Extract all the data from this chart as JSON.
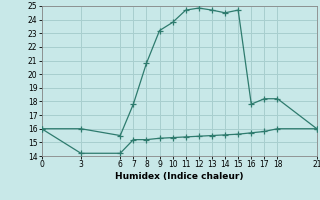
{
  "upper_x": [
    0,
    3,
    6,
    7,
    8,
    9,
    10,
    11,
    12,
    13,
    14,
    15,
    16,
    17,
    18,
    21
  ],
  "upper_y": [
    16,
    16,
    15.5,
    17.8,
    20.8,
    23.2,
    23.8,
    24.7,
    24.85,
    24.7,
    24.5,
    24.7,
    17.8,
    18.2,
    18.2,
    16
  ],
  "lower_x": [
    0,
    3,
    6,
    7,
    8,
    9,
    10,
    11,
    12,
    13,
    14,
    15,
    16,
    17,
    18,
    21
  ],
  "lower_y": [
    16,
    14.2,
    14.2,
    15.2,
    15.2,
    15.3,
    15.35,
    15.4,
    15.45,
    15.5,
    15.55,
    15.6,
    15.7,
    15.8,
    16.0,
    16.0
  ],
  "line_color": "#2e7b6e",
  "bg_color": "#c8e8e8",
  "grid_color": "#a8cece",
  "xlabel": "Humidex (Indice chaleur)",
  "xlim": [
    0,
    21
  ],
  "ylim": [
    14,
    25
  ],
  "xticks": [
    0,
    3,
    6,
    7,
    8,
    9,
    10,
    11,
    12,
    13,
    14,
    15,
    16,
    17,
    18,
    21
  ],
  "yticks": [
    14,
    15,
    16,
    17,
    18,
    19,
    20,
    21,
    22,
    23,
    24,
    25
  ],
  "marker": "+"
}
